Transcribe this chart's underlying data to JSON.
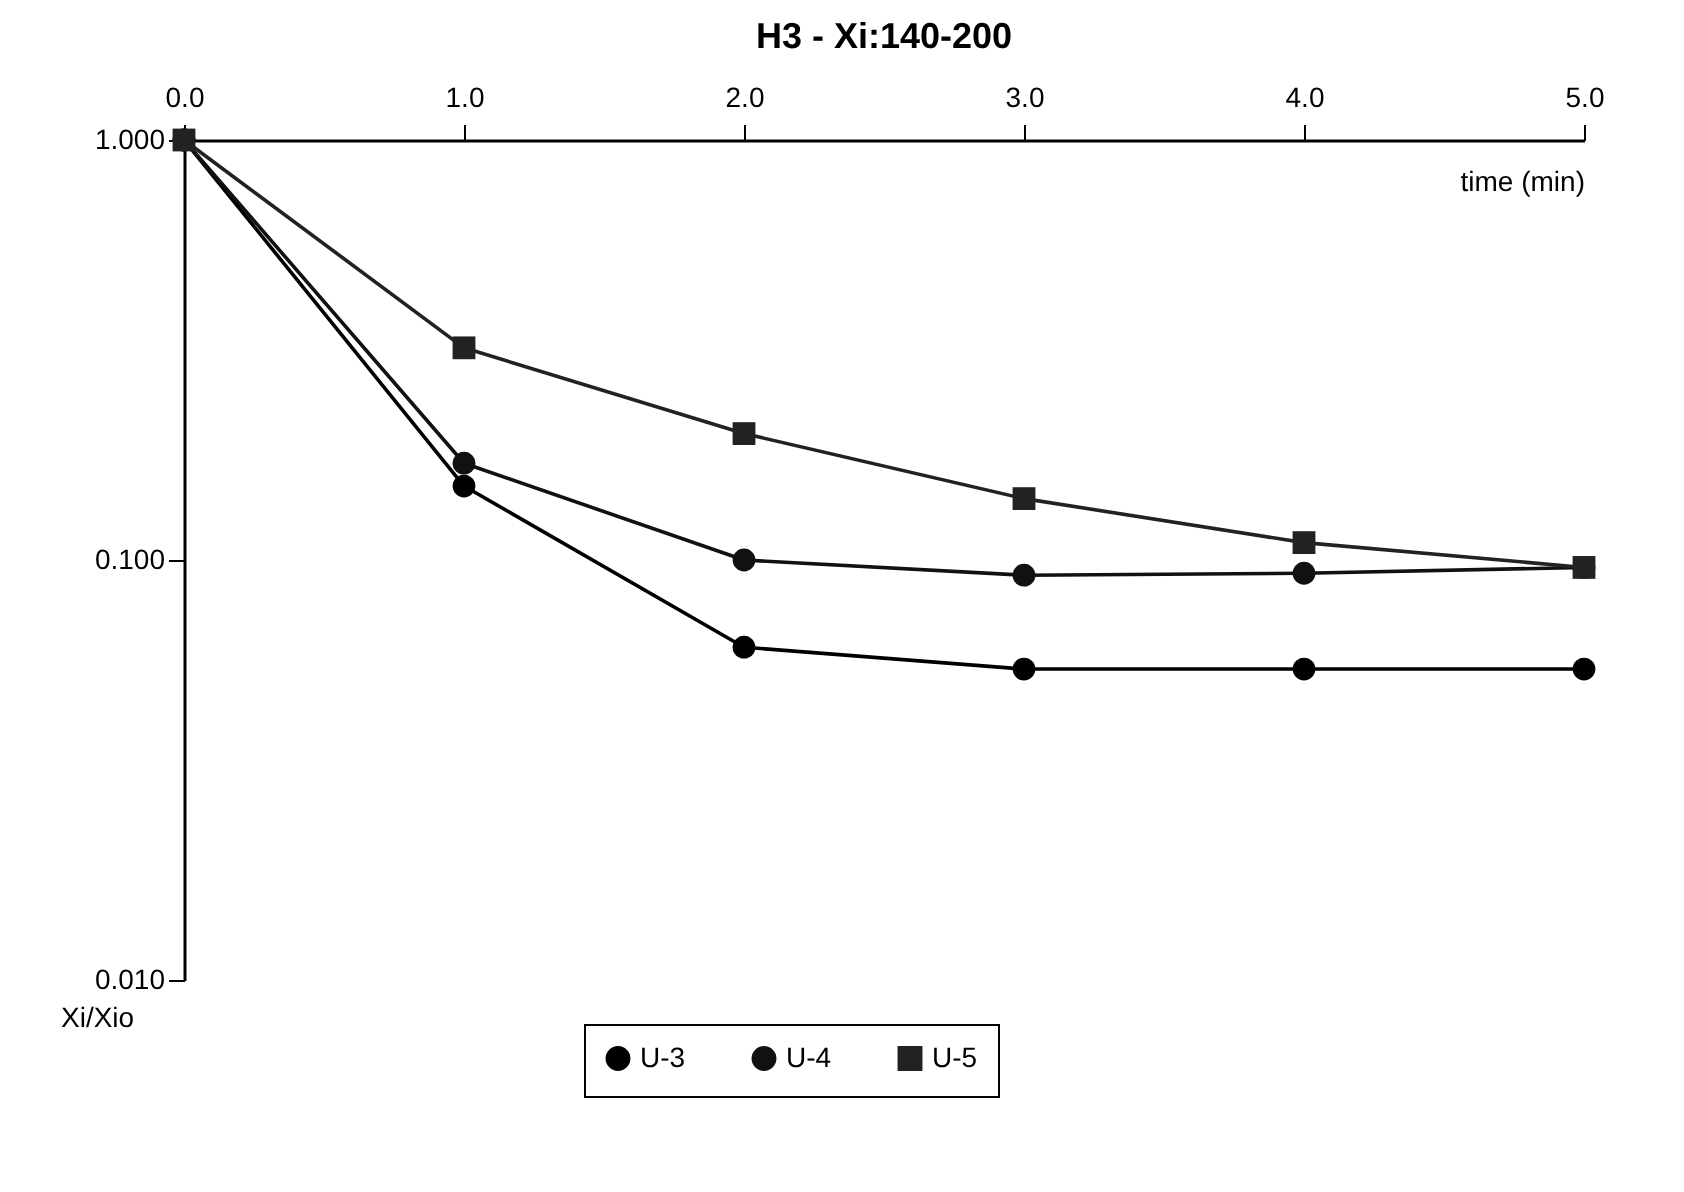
{
  "chart_data": {
    "type": "line",
    "title": "H3 - Xi:140-200",
    "xlabel": "time (min)",
    "ylabel": "Xi/Xio",
    "x": [
      0,
      1,
      2,
      3,
      4,
      5
    ],
    "series": [
      {
        "name": "U-3",
        "color": "#000000",
        "marker": "circle",
        "values": [
          1.0,
          0.15,
          0.062,
          0.055,
          0.055,
          0.055
        ]
      },
      {
        "name": "U-4",
        "color": "#111111",
        "marker": "circle",
        "values": [
          1.0,
          0.17,
          0.1,
          0.092,
          0.093,
          0.096
        ]
      },
      {
        "name": "U-5",
        "color": "#222222",
        "marker": "square",
        "values": [
          1.0,
          0.32,
          0.2,
          0.14,
          0.11,
          0.096
        ]
      }
    ],
    "log": "y",
    "xlim": [
      0,
      5
    ],
    "ylim": [
      0.01,
      1
    ],
    "xticks": [
      {
        "value": 0,
        "label": "0.0"
      },
      {
        "value": 1,
        "label": "1.0"
      },
      {
        "value": 2,
        "label": "2.0"
      },
      {
        "value": 3,
        "label": "3.0"
      },
      {
        "value": 4,
        "label": "4.0"
      },
      {
        "value": 5,
        "label": "5.0"
      }
    ],
    "yticks": [
      {
        "value": 0.01,
        "label": "0.010"
      },
      {
        "value": 0.1,
        "label": "0.100"
      },
      {
        "value": 1,
        "label": "1.000"
      }
    ],
    "grid": false,
    "legend": "bottom"
  }
}
